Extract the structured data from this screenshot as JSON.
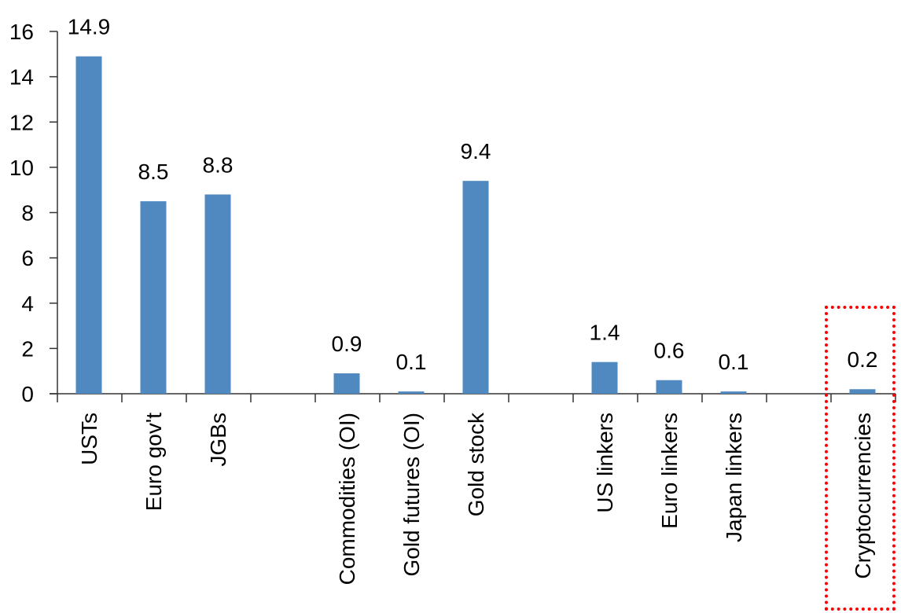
{
  "chart_data": {
    "type": "bar",
    "categories": [
      "USTs",
      "Euro gov't",
      "JGBs",
      "",
      "Commodities (OI)",
      "Gold futures (OI)",
      "Gold stock",
      "",
      "US linkers",
      "Euro linkers",
      "Japan linkers",
      "",
      "Cryptocurrencies"
    ],
    "values": [
      14.9,
      8.5,
      8.8,
      null,
      0.9,
      0.1,
      9.4,
      null,
      1.4,
      0.6,
      0.1,
      null,
      0.2
    ],
    "data_labels": [
      "14.9",
      "8.5",
      "8.8",
      "",
      "0.9",
      "0.1",
      "9.4",
      "",
      "1.4",
      "0.6",
      "0.1",
      "",
      "0.2"
    ],
    "ylim": [
      0,
      16
    ],
    "yticks": [
      0,
      2,
      4,
      6,
      8,
      10,
      12,
      14,
      16
    ],
    "title": "",
    "xlabel": "",
    "ylabel": "",
    "grid": false,
    "bar_color": "#4f89c0",
    "highlight": {
      "category": "Cryptocurrencies",
      "color": "#ff0000",
      "style": "dotted"
    }
  }
}
